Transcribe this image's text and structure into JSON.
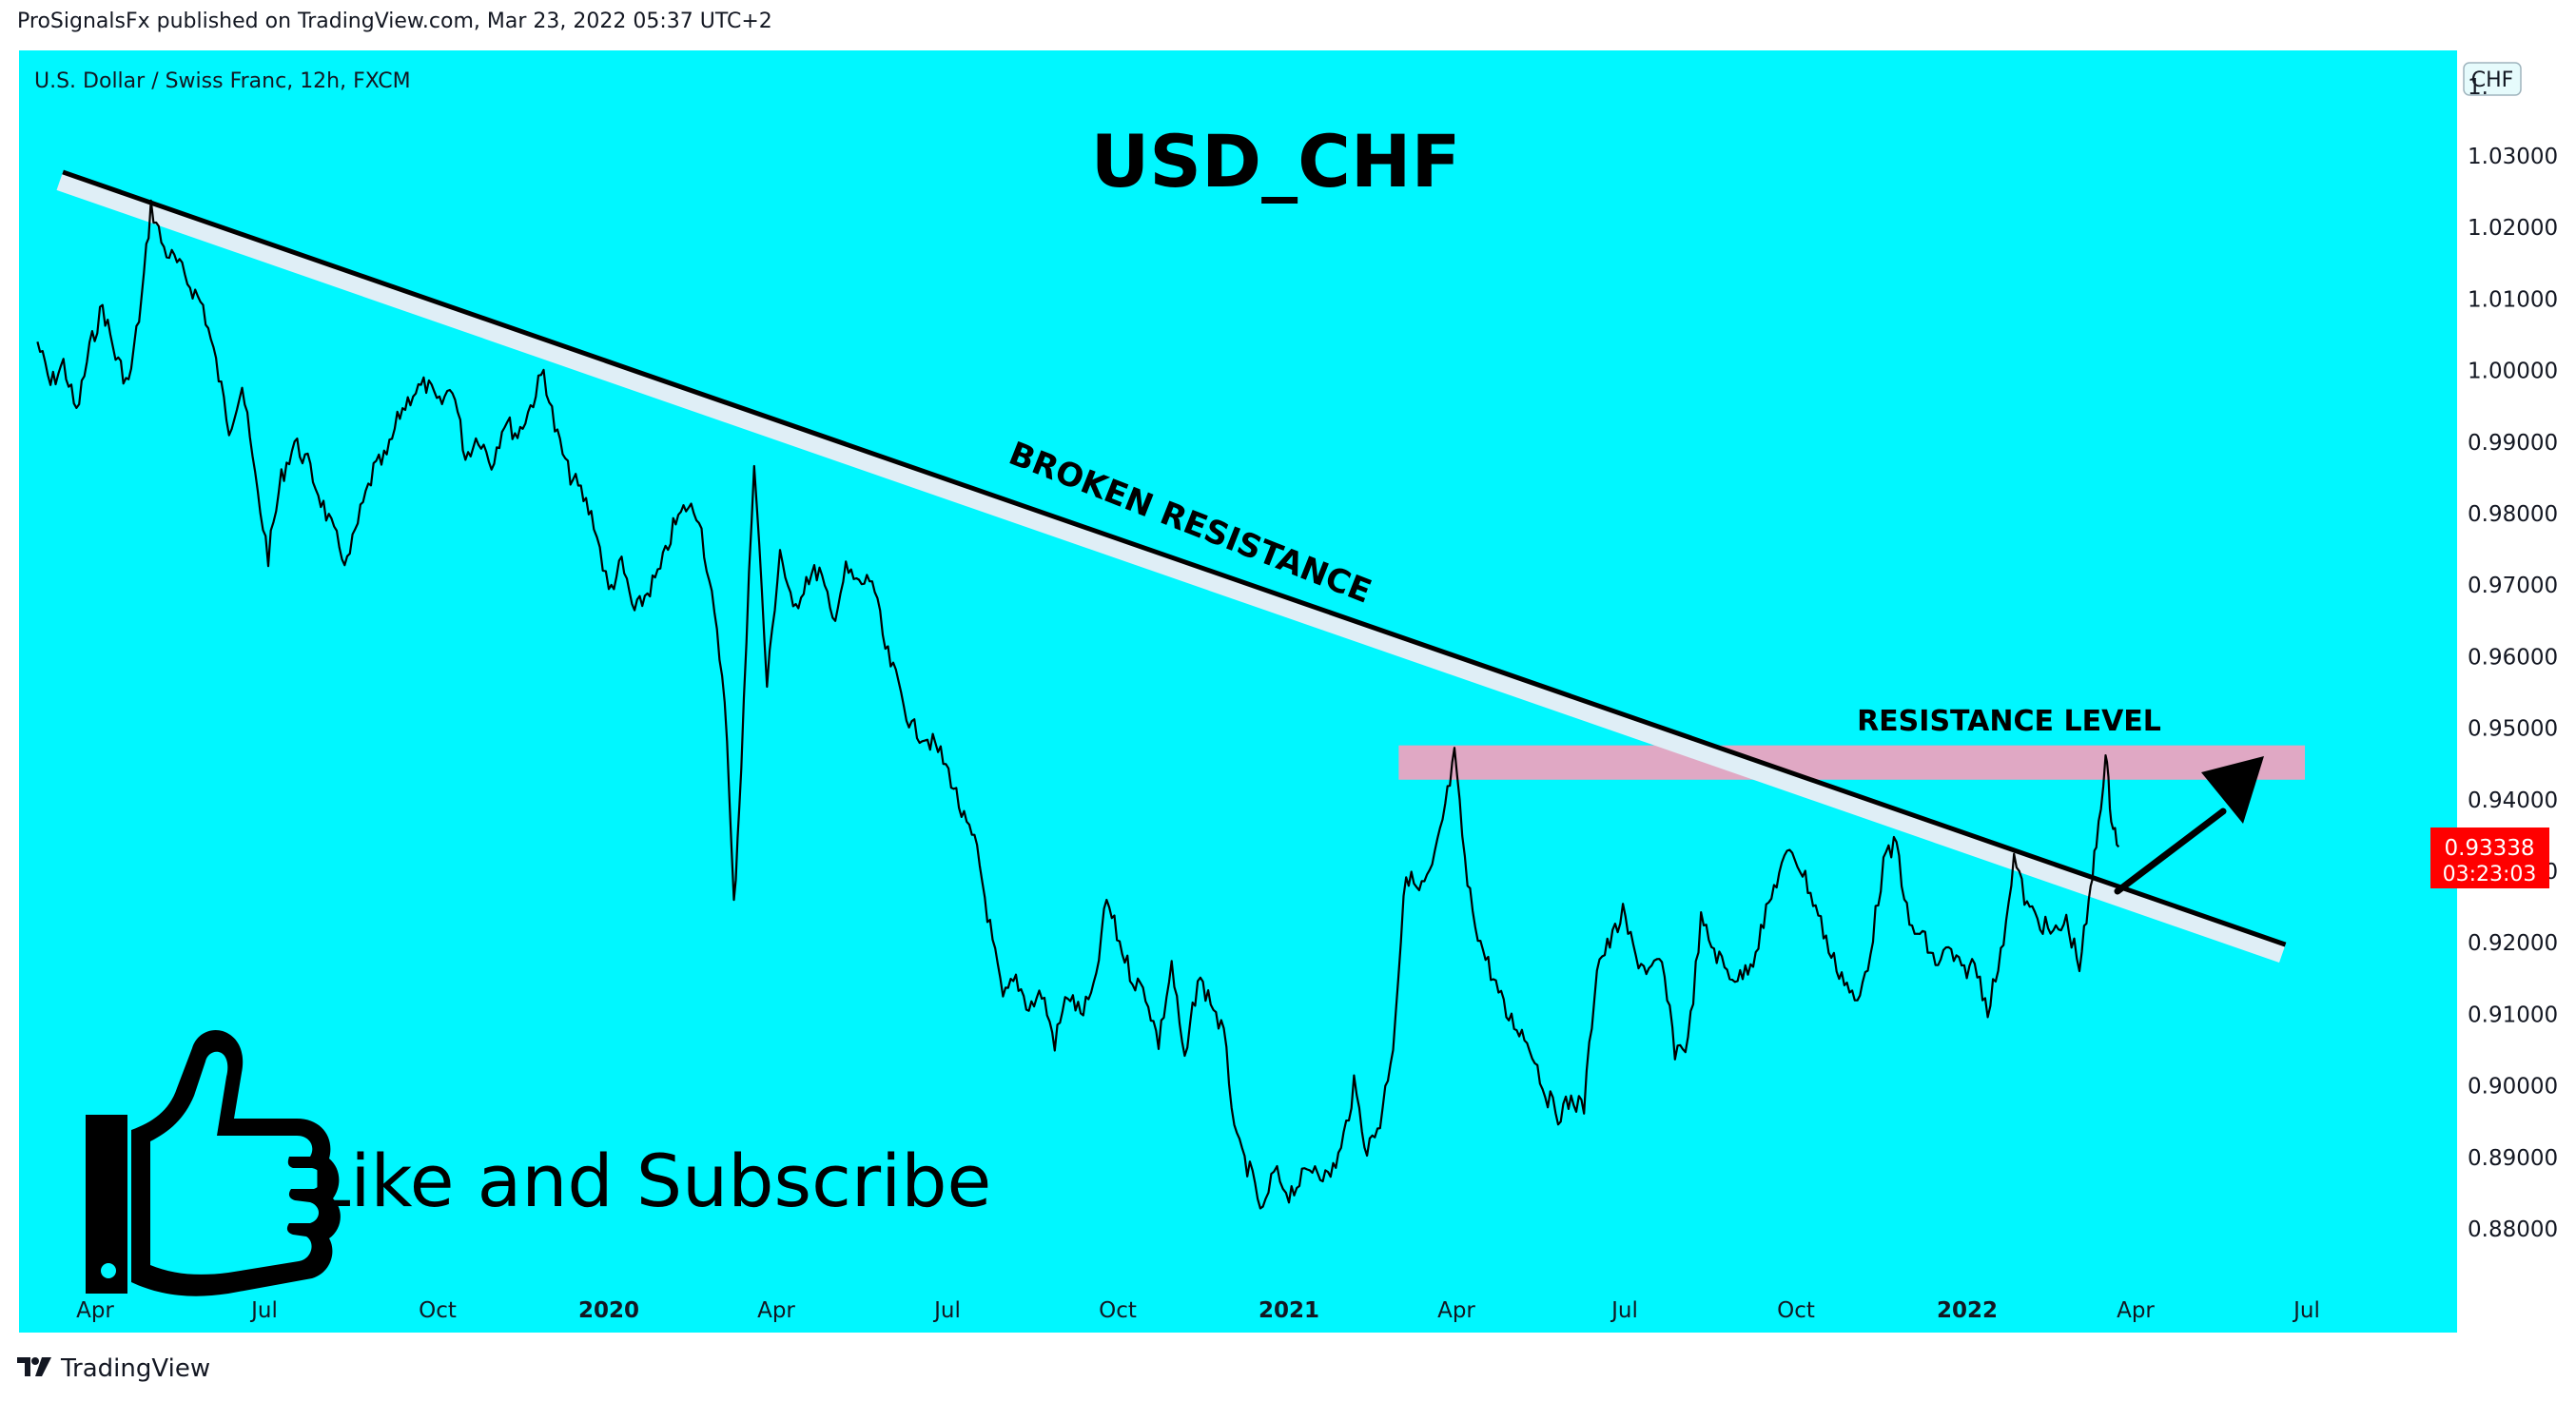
{
  "header": {
    "published_by": "ProSignalsFx published on TradingView.com, Mar 23, 2022 05:37 UTC+2"
  },
  "symbol_line": "U.S. Dollar / Swiss Franc, 12h, FXCM",
  "currency_badge": "CHF",
  "price_scale_top_partial": "1.",
  "current_price": {
    "value": "0.93338",
    "countdown": "03:23:03",
    "color": "#ff0000"
  },
  "annotations": {
    "title": "USD_CHF",
    "broken_resistance": "BROKEN RESISTANCE",
    "resistance_level": "RESISTANCE LEVEL",
    "cta": "Like and Subscribe"
  },
  "footer": {
    "brand": "TradingView"
  },
  "colors": {
    "background": "#00f7ff",
    "candles": "#000000",
    "trendline_band": "#dfeef6",
    "resistance_zone": "#e0a8c4",
    "price_tag": "#ff0000"
  },
  "icons": [
    "thumbs-up-icon",
    "arrow-up-icon",
    "tradingview-logo-icon"
  ],
  "chart_data": {
    "type": "line",
    "title": "USD_CHF",
    "subtitle": "U.S. Dollar / Swiss Franc, 12h, FXCM",
    "x_tick_labels": [
      {
        "label": "Apr",
        "bold": false
      },
      {
        "label": "Jul",
        "bold": false
      },
      {
        "label": "Oct",
        "bold": false
      },
      {
        "label": "2020",
        "bold": true
      },
      {
        "label": "Apr",
        "bold": false
      },
      {
        "label": "Jul",
        "bold": false
      },
      {
        "label": "Oct",
        "bold": false
      },
      {
        "label": "2021",
        "bold": true
      },
      {
        "label": "Apr",
        "bold": false
      },
      {
        "label": "Jul",
        "bold": false
      },
      {
        "label": "Oct",
        "bold": false
      },
      {
        "label": "2022",
        "bold": true
      },
      {
        "label": "Apr",
        "bold": false
      },
      {
        "label": "Jul",
        "bold": false
      }
    ],
    "x_tick_dates": [
      "2019-04-01",
      "2019-07-01",
      "2019-10-01",
      "2020-01-01",
      "2020-04-01",
      "2020-07-01",
      "2020-10-01",
      "2021-01-01",
      "2021-04-01",
      "2021-07-01",
      "2021-10-01",
      "2022-01-01",
      "2022-04-01",
      "2022-07-01"
    ],
    "y_ticks": [
      "1.03000",
      "1.02000",
      "1.01000",
      "1.00000",
      "0.99000",
      "0.98000",
      "0.97000",
      "0.96000",
      "0.95000",
      "0.94000",
      "0.93000",
      "0.92000",
      "0.91000",
      "0.90000",
      "0.89000",
      "0.88000"
    ],
    "ylim": [
      0.875,
      1.041
    ],
    "xlim": [
      "2019-03-01",
      "2022-07-31"
    ],
    "series": [
      {
        "values": [
          [
            "2019-03-01",
            1.004
          ],
          [
            "2019-03-08",
            0.998
          ],
          [
            "2019-03-15",
            1.001
          ],
          [
            "2019-03-22",
            0.994
          ],
          [
            "2019-03-29",
            1.003
          ],
          [
            "2019-04-05",
            1.009
          ],
          [
            "2019-04-12",
            1.002
          ],
          [
            "2019-04-19",
            0.998
          ],
          [
            "2019-04-26",
            1.01
          ],
          [
            "2019-05-01",
            1.023
          ],
          [
            "2019-05-08",
            1.017
          ],
          [
            "2019-05-15",
            1.015
          ],
          [
            "2019-05-22",
            1.012
          ],
          [
            "2019-05-29",
            1.009
          ],
          [
            "2019-06-05",
            1.001
          ],
          [
            "2019-06-12",
            0.992
          ],
          [
            "2019-06-19",
            0.998
          ],
          [
            "2019-06-26",
            0.985
          ],
          [
            "2019-07-03",
            0.974
          ],
          [
            "2019-07-10",
            0.985
          ],
          [
            "2019-07-17",
            0.99
          ],
          [
            "2019-07-24",
            0.987
          ],
          [
            "2019-07-31",
            0.982
          ],
          [
            "2019-08-07",
            0.977
          ],
          [
            "2019-08-14",
            0.973
          ],
          [
            "2019-08-21",
            0.98
          ],
          [
            "2019-08-28",
            0.986
          ],
          [
            "2019-09-04",
            0.988
          ],
          [
            "2019-09-11",
            0.994
          ],
          [
            "2019-09-18",
            0.997
          ],
          [
            "2019-09-25",
            0.998
          ],
          [
            "2019-10-02",
            0.995
          ],
          [
            "2019-10-09",
            0.998
          ],
          [
            "2019-10-16",
            0.988
          ],
          [
            "2019-10-23",
            0.991
          ],
          [
            "2019-10-30",
            0.987
          ],
          [
            "2019-11-06",
            0.993
          ],
          [
            "2019-11-13",
            0.991
          ],
          [
            "2019-11-20",
            0.995
          ],
          [
            "2019-11-27",
            1.0
          ],
          [
            "2019-12-03",
            0.992
          ],
          [
            "2019-12-10",
            0.986
          ],
          [
            "2019-12-17",
            0.983
          ],
          [
            "2019-12-24",
            0.979
          ],
          [
            "2020-01-01",
            0.969
          ],
          [
            "2020-01-08",
            0.973
          ],
          [
            "2020-01-15",
            0.966
          ],
          [
            "2020-01-22",
            0.969
          ],
          [
            "2020-01-29",
            0.972
          ],
          [
            "2020-02-05",
            0.978
          ],
          [
            "2020-02-12",
            0.981
          ],
          [
            "2020-02-19",
            0.98
          ],
          [
            "2020-02-26",
            0.968
          ],
          [
            "2020-03-04",
            0.955
          ],
          [
            "2020-03-09",
            0.925
          ],
          [
            "2020-03-13",
            0.945
          ],
          [
            "2020-03-20",
            0.988
          ],
          [
            "2020-03-27",
            0.956
          ],
          [
            "2020-04-03",
            0.975
          ],
          [
            "2020-04-10",
            0.966
          ],
          [
            "2020-04-17",
            0.971
          ],
          [
            "2020-04-24",
            0.972
          ],
          [
            "2020-05-01",
            0.965
          ],
          [
            "2020-05-08",
            0.972
          ],
          [
            "2020-05-15",
            0.97
          ],
          [
            "2020-05-22",
            0.971
          ],
          [
            "2020-05-29",
            0.961
          ],
          [
            "2020-06-05",
            0.956
          ],
          [
            "2020-06-12",
            0.95
          ],
          [
            "2020-06-19",
            0.949
          ],
          [
            "2020-06-26",
            0.947
          ],
          [
            "2020-07-03",
            0.943
          ],
          [
            "2020-07-10",
            0.937
          ],
          [
            "2020-07-17",
            0.933
          ],
          [
            "2020-07-24",
            0.922
          ],
          [
            "2020-07-31",
            0.912
          ],
          [
            "2020-08-07",
            0.915
          ],
          [
            "2020-08-14",
            0.911
          ],
          [
            "2020-08-21",
            0.913
          ],
          [
            "2020-08-28",
            0.906
          ],
          [
            "2020-09-04",
            0.913
          ],
          [
            "2020-09-11",
            0.91
          ],
          [
            "2020-09-18",
            0.913
          ],
          [
            "2020-09-25",
            0.926
          ],
          [
            "2020-10-02",
            0.92
          ],
          [
            "2020-10-09",
            0.915
          ],
          [
            "2020-10-16",
            0.913
          ],
          [
            "2020-10-23",
            0.906
          ],
          [
            "2020-10-30",
            0.917
          ],
          [
            "2020-11-06",
            0.903
          ],
          [
            "2020-11-13",
            0.915
          ],
          [
            "2020-11-20",
            0.912
          ],
          [
            "2020-11-27",
            0.907
          ],
          [
            "2020-12-04",
            0.892
          ],
          [
            "2020-12-11",
            0.888
          ],
          [
            "2020-12-18",
            0.882
          ],
          [
            "2020-12-24",
            0.888
          ],
          [
            "2021-01-01",
            0.885
          ],
          [
            "2021-01-08",
            0.887
          ],
          [
            "2021-01-15",
            0.889
          ],
          [
            "2021-01-22",
            0.887
          ],
          [
            "2021-01-29",
            0.891
          ],
          [
            "2021-02-05",
            0.9
          ],
          [
            "2021-02-12",
            0.891
          ],
          [
            "2021-02-19",
            0.895
          ],
          [
            "2021-02-26",
            0.906
          ],
          [
            "2021-03-05",
            0.93
          ],
          [
            "2021-03-12",
            0.927
          ],
          [
            "2021-03-19",
            0.93
          ],
          [
            "2021-03-26",
            0.939
          ],
          [
            "2021-03-31",
            0.946
          ],
          [
            "2021-04-07",
            0.928
          ],
          [
            "2021-04-14",
            0.92
          ],
          [
            "2021-04-21",
            0.915
          ],
          [
            "2021-04-28",
            0.91
          ],
          [
            "2021-05-05",
            0.908
          ],
          [
            "2021-05-12",
            0.905
          ],
          [
            "2021-05-19",
            0.899
          ],
          [
            "2021-05-26",
            0.896
          ],
          [
            "2021-06-02",
            0.898
          ],
          [
            "2021-06-09",
            0.897
          ],
          [
            "2021-06-16",
            0.917
          ],
          [
            "2021-06-23",
            0.92
          ],
          [
            "2021-06-30",
            0.924
          ],
          [
            "2021-07-07",
            0.918
          ],
          [
            "2021-07-14",
            0.916
          ],
          [
            "2021-07-21",
            0.917
          ],
          [
            "2021-07-28",
            0.905
          ],
          [
            "2021-08-04",
            0.906
          ],
          [
            "2021-08-11",
            0.923
          ],
          [
            "2021-08-18",
            0.919
          ],
          [
            "2021-08-25",
            0.916
          ],
          [
            "2021-09-01",
            0.915
          ],
          [
            "2021-09-08",
            0.918
          ],
          [
            "2021-09-15",
            0.924
          ],
          [
            "2021-09-22",
            0.93
          ],
          [
            "2021-09-29",
            0.933
          ],
          [
            "2021-10-06",
            0.929
          ],
          [
            "2021-10-13",
            0.924
          ],
          [
            "2021-10-20",
            0.918
          ],
          [
            "2021-10-27",
            0.915
          ],
          [
            "2021-11-03",
            0.911
          ],
          [
            "2021-11-10",
            0.919
          ],
          [
            "2021-11-17",
            0.931
          ],
          [
            "2021-11-24",
            0.934
          ],
          [
            "2021-12-01",
            0.922
          ],
          [
            "2021-12-08",
            0.921
          ],
          [
            "2021-12-15",
            0.917
          ],
          [
            "2021-12-22",
            0.919
          ],
          [
            "2021-12-29",
            0.916
          ],
          [
            "2022-01-05",
            0.917
          ],
          [
            "2022-01-12",
            0.911
          ],
          [
            "2022-01-19",
            0.918
          ],
          [
            "2022-01-26",
            0.932
          ],
          [
            "2022-02-02",
            0.925
          ],
          [
            "2022-02-09",
            0.923
          ],
          [
            "2022-02-16",
            0.921
          ],
          [
            "2022-02-23",
            0.923
          ],
          [
            "2022-03-02",
            0.917
          ],
          [
            "2022-03-07",
            0.925
          ],
          [
            "2022-03-11",
            0.934
          ],
          [
            "2022-03-16",
            0.946
          ],
          [
            "2022-03-19",
            0.938
          ],
          [
            "2022-03-23",
            0.9334
          ]
        ]
      }
    ],
    "resistance_zone": {
      "from": "2021-03-01",
      "to": "2022-06-30",
      "ylim": [
        0.9428,
        0.9476
      ]
    },
    "trendline": {
      "from": [
        "2019-03-15",
        1.028
      ],
      "to": [
        "2022-06-20",
        0.92
      ]
    },
    "current_price": 0.93338,
    "grid": false
  }
}
